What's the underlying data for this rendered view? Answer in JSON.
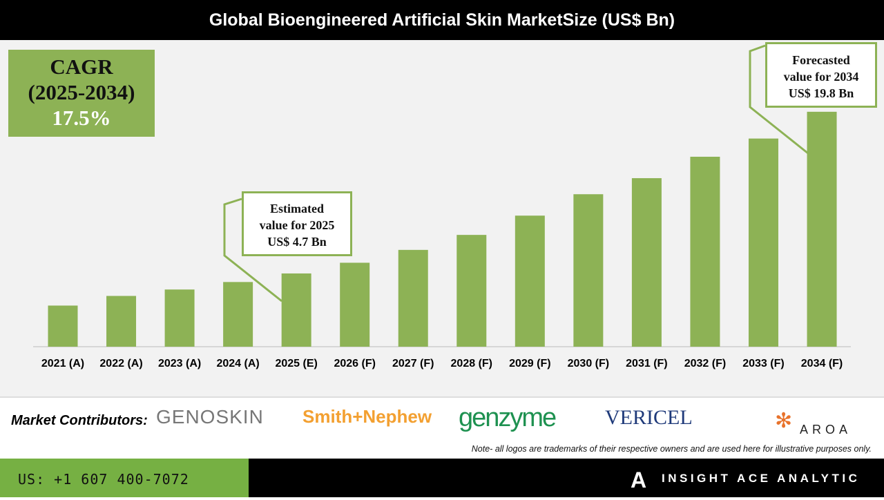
{
  "chart_data": {
    "type": "bar",
    "title": "Global Bioengineered Artificial Skin MarketSize (US$ Bn)",
    "categories": [
      "2021 (A)",
      "2022 (A)",
      "2023 (A)",
      "2024 (A)",
      "2025 (E)",
      "2026 (F)",
      "2027 (F)",
      "2028 (F)",
      "2029 (F)",
      "2030 (F)",
      "2031 (F)",
      "2032 (F)",
      "2033 (F)",
      "2034 (F)"
    ],
    "values": [
      1.7,
      2.6,
      3.2,
      3.9,
      4.7,
      5.7,
      6.9,
      8.3,
      10.1,
      12.1,
      13.6,
      15.6,
      17.3,
      19.8
    ],
    "bar_color": "#8db255",
    "grid": false,
    "annotations": {
      "cagr": {
        "line1": "CAGR",
        "line2": "(2025-2034)",
        "value": "17.5%"
      },
      "estimated": {
        "line1": "Estimated",
        "line2": "value for 2025",
        "line3": "US$ 4.7 Bn"
      },
      "forecast": {
        "line1": "Forecasted",
        "line2": "value for 2034",
        "line3": "US$ 19.8 Bn"
      }
    }
  },
  "footer": {
    "contributors_label": "Market Contributors:",
    "logos": [
      "GENOSKIN",
      "Smith+Nephew",
      "genzyme",
      "VERICEL",
      "AROA"
    ],
    "note": "Note- all logos are trademarks of their respective owners and are used here for illustrative purposes only.",
    "phone": "US: +1 607 400-7072",
    "brand": "INSIGHT ACE ANALYTIC"
  }
}
